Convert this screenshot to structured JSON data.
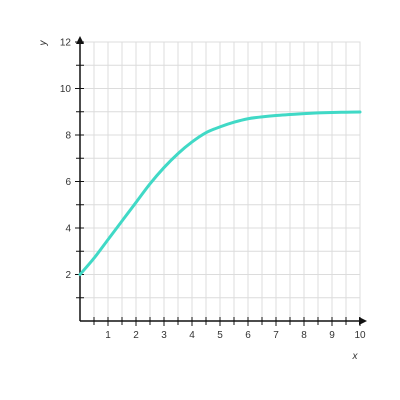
{
  "chart_data": {
    "type": "line",
    "title": "",
    "xlabel": "x",
    "ylabel": "y",
    "xlim": [
      0,
      10
    ],
    "ylim": [
      0,
      12
    ],
    "x_ticks": [
      1,
      2,
      3,
      4,
      5,
      6,
      7,
      8,
      9,
      10
    ],
    "y_ticks": [
      2,
      4,
      6,
      8,
      10,
      12
    ],
    "x_tick_labels": [
      "1",
      "2",
      "3",
      "4",
      "5",
      "6",
      "7",
      "8",
      "9",
      "10"
    ],
    "y_tick_labels": [
      "2",
      "4",
      "6",
      "8",
      "10",
      "12"
    ],
    "grid": true,
    "grid_minor_x": 0.5,
    "grid_minor_y": 1,
    "series": [
      {
        "color": "#40d9c6",
        "x": [
          0,
          0.5,
          1,
          1.5,
          2,
          2.5,
          3,
          3.5,
          4,
          4.5,
          5,
          5.5,
          6,
          6.5,
          7,
          7.5,
          8,
          8.5,
          9,
          9.5,
          10
        ],
        "y": [
          2.0,
          2.7,
          3.5,
          4.3,
          5.1,
          5.9,
          6.6,
          7.2,
          7.7,
          8.1,
          8.35,
          8.55,
          8.7,
          8.78,
          8.84,
          8.88,
          8.92,
          8.95,
          8.97,
          8.98,
          8.99
        ]
      }
    ]
  },
  "colors": {
    "grid": "#dcdcdc",
    "axis": "#111111"
  }
}
